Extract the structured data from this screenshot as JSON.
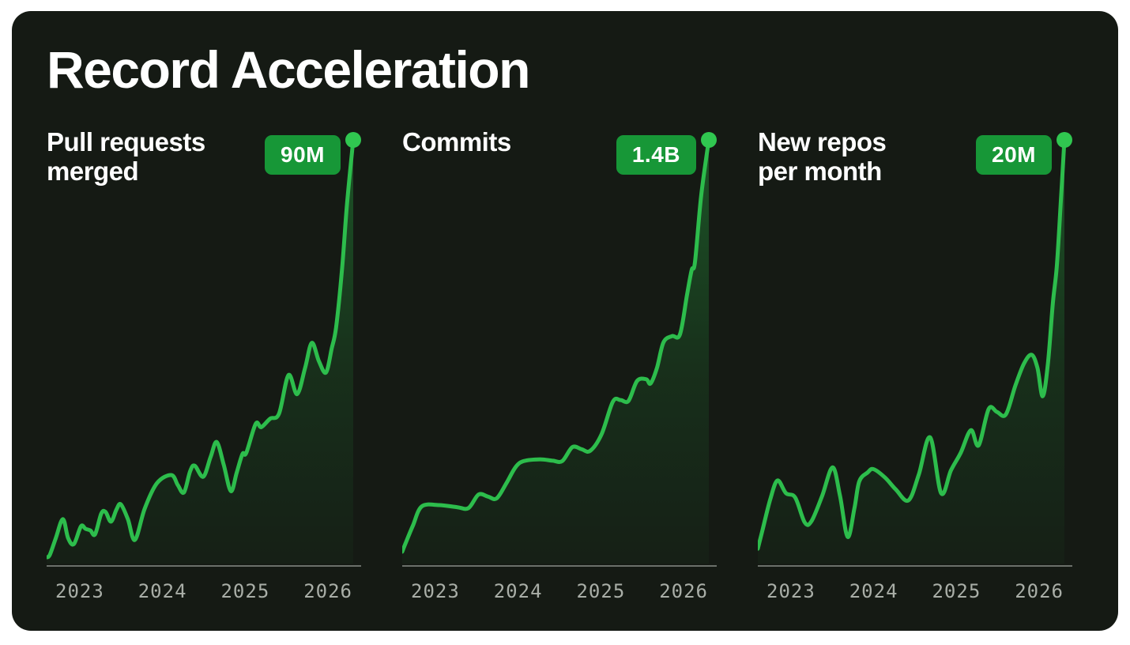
{
  "page_title": "Record Acceleration",
  "colors": {
    "page_background": "#ffffff",
    "card_background": "#151a14",
    "title_text": "#ffffff",
    "subtitle_text": "#ffffff",
    "line": "#2dbd4c",
    "dot": "#30c750",
    "area_fill": "#26a641",
    "badge_bg": "#179737",
    "badge_text": "#ffffff",
    "axis_line": "#6b706a",
    "axis_label": "#a9aea7"
  },
  "chart_data": [
    {
      "type": "area",
      "title": "Pull requests merged",
      "title_line1": "Pull requests",
      "title_line2": "merged",
      "badge": "90M",
      "peak_value": "90M",
      "ticks": [
        "2023",
        "2024",
        "2025",
        "2026"
      ],
      "x_range": [
        "2023",
        "2026"
      ],
      "ylim": [
        0,
        1
      ],
      "grid": false,
      "points": [
        [
          0,
          0.015
        ],
        [
          0.01,
          0.02
        ],
        [
          0.03,
          0.06
        ],
        [
          0.053,
          0.105
        ],
        [
          0.07,
          0.06
        ],
        [
          0.089,
          0.046
        ],
        [
          0.112,
          0.088
        ],
        [
          0.127,
          0.082
        ],
        [
          0.143,
          0.078
        ],
        [
          0.158,
          0.069
        ],
        [
          0.178,
          0.118
        ],
        [
          0.192,
          0.122
        ],
        [
          0.21,
          0.099
        ],
        [
          0.228,
          0.128
        ],
        [
          0.242,
          0.14
        ],
        [
          0.265,
          0.105
        ],
        [
          0.288,
          0.056
        ],
        [
          0.32,
          0.13
        ],
        [
          0.36,
          0.19
        ],
        [
          0.407,
          0.209
        ],
        [
          0.428,
          0.185
        ],
        [
          0.448,
          0.168
        ],
        [
          0.468,
          0.218
        ],
        [
          0.483,
          0.231
        ],
        [
          0.511,
          0.205
        ],
        [
          0.535,
          0.252
        ],
        [
          0.555,
          0.287
        ],
        [
          0.578,
          0.232
        ],
        [
          0.601,
          0.171
        ],
        [
          0.62,
          0.215
        ],
        [
          0.639,
          0.259
        ],
        [
          0.651,
          0.261
        ],
        [
          0.682,
          0.33
        ],
        [
          0.7,
          0.322
        ],
        [
          0.729,
          0.342
        ],
        [
          0.758,
          0.354
        ],
        [
          0.789,
          0.445
        ],
        [
          0.817,
          0.4
        ],
        [
          0.843,
          0.462
        ],
        [
          0.865,
          0.521
        ],
        [
          0.888,
          0.478
        ],
        [
          0.911,
          0.451
        ],
        [
          0.93,
          0.508
        ],
        [
          0.944,
          0.557
        ],
        [
          0.963,
          0.69
        ],
        [
          0.98,
          0.85
        ],
        [
          1,
          1
        ]
      ]
    },
    {
      "type": "area",
      "title": "Commits",
      "title_line1": "Commits",
      "title_line2": "",
      "badge": "1.4B",
      "peak_value": "1.4B",
      "ticks": [
        "2023",
        "2024",
        "2025",
        "2026"
      ],
      "x_range": [
        "2023",
        "2026"
      ],
      "ylim": [
        0,
        1
      ],
      "grid": false,
      "points": [
        [
          0,
          0.028
        ],
        [
          0.012,
          0.05
        ],
        [
          0.035,
          0.09
        ],
        [
          0.064,
          0.135
        ],
        [
          0.12,
          0.138
        ],
        [
          0.18,
          0.133
        ],
        [
          0.216,
          0.131
        ],
        [
          0.249,
          0.163
        ],
        [
          0.28,
          0.158
        ],
        [
          0.308,
          0.154
        ],
        [
          0.34,
          0.19
        ],
        [
          0.37,
          0.228
        ],
        [
          0.397,
          0.242
        ],
        [
          0.45,
          0.246
        ],
        [
          0.49,
          0.243
        ],
        [
          0.522,
          0.242
        ],
        [
          0.555,
          0.275
        ],
        [
          0.585,
          0.27
        ],
        [
          0.613,
          0.266
        ],
        [
          0.65,
          0.305
        ],
        [
          0.687,
          0.382
        ],
        [
          0.712,
          0.386
        ],
        [
          0.738,
          0.384
        ],
        [
          0.766,
          0.431
        ],
        [
          0.796,
          0.435
        ],
        [
          0.81,
          0.425
        ],
        [
          0.831,
          0.462
        ],
        [
          0.852,
          0.522
        ],
        [
          0.88,
          0.537
        ],
        [
          0.906,
          0.541
        ],
        [
          0.929,
          0.635
        ],
        [
          0.944,
          0.693
        ],
        [
          0.955,
          0.712
        ],
        [
          0.975,
          0.868
        ],
        [
          1,
          1
        ]
      ]
    },
    {
      "type": "area",
      "title": "New repos per month",
      "title_line1": "New repos",
      "title_line2": "per month",
      "badge": "20M",
      "peak_value": "20M",
      "ticks": [
        "2023",
        "2024",
        "2025",
        "2026"
      ],
      "x_range": [
        "2023",
        "2026"
      ],
      "ylim": [
        0,
        1
      ],
      "grid": false,
      "points": [
        [
          0,
          0.035
        ],
        [
          0.015,
          0.078
        ],
        [
          0.04,
          0.15
        ],
        [
          0.064,
          0.196
        ],
        [
          0.092,
          0.166
        ],
        [
          0.122,
          0.156
        ],
        [
          0.153,
          0.097
        ],
        [
          0.175,
          0.1
        ],
        [
          0.21,
          0.16
        ],
        [
          0.244,
          0.227
        ],
        [
          0.268,
          0.16
        ],
        [
          0.293,
          0.063
        ],
        [
          0.315,
          0.13
        ],
        [
          0.331,
          0.194
        ],
        [
          0.358,
          0.215
        ],
        [
          0.377,
          0.223
        ],
        [
          0.415,
          0.203
        ],
        [
          0.45,
          0.175
        ],
        [
          0.491,
          0.149
        ],
        [
          0.525,
          0.21
        ],
        [
          0.562,
          0.298
        ],
        [
          0.598,
          0.166
        ],
        [
          0.63,
          0.22
        ],
        [
          0.662,
          0.262
        ],
        [
          0.695,
          0.315
        ],
        [
          0.72,
          0.279
        ],
        [
          0.753,
          0.365
        ],
        [
          0.78,
          0.358
        ],
        [
          0.809,
          0.352
        ],
        [
          0.84,
          0.42
        ],
        [
          0.868,
          0.472
        ],
        [
          0.893,
          0.493
        ],
        [
          0.912,
          0.462
        ],
        [
          0.929,
          0.395
        ],
        [
          0.946,
          0.47
        ],
        [
          0.962,
          0.613
        ],
        [
          0.975,
          0.7
        ],
        [
          0.988,
          0.85
        ],
        [
          1,
          1
        ]
      ]
    }
  ]
}
